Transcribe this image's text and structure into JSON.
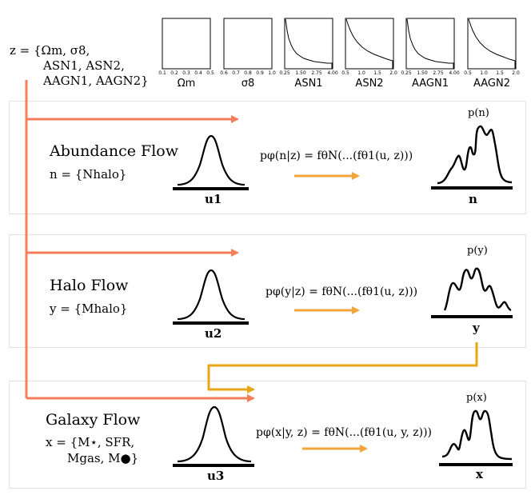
{
  "params": {
    "z_line1": "z = {Ωm, σ8,",
    "z_line2": "ASN1, ASN2,",
    "z_line3": "AAGN1, AAGN2}",
    "priors": [
      {
        "label": "Ωm",
        "ticks": [
          "0.1",
          "0.2",
          "0.3",
          "0.4",
          "0.5"
        ]
      },
      {
        "label": "σ8",
        "ticks": [
          "0.6",
          "0.7",
          "0.8",
          "0.9",
          "1.0"
        ]
      },
      {
        "label": "ASN1",
        "ticks": [
          "0.25",
          "1.50",
          "2.75",
          "4.00"
        ]
      },
      {
        "label": "ASN2",
        "ticks": [
          "0.5",
          "1.0",
          "1.5",
          "2.0"
        ]
      },
      {
        "label": "AAGN1",
        "ticks": [
          "0.25",
          "1.50",
          "2.75",
          "4.00"
        ]
      },
      {
        "label": "AAGN2",
        "ticks": [
          "0.5",
          "1.0",
          "1.5",
          "2.0"
        ]
      }
    ]
  },
  "flows": [
    {
      "title": "Abundance Flow",
      "definition": "n = {Nhalo}",
      "base_label": "u1",
      "equation": "pφ(n|z) = fθN(...(fθ1(u, z)))",
      "target_label": "n",
      "density_label": "p(n)"
    },
    {
      "title": "Halo Flow",
      "definition": "y = {Mhalo}",
      "base_label": "u2",
      "equation": "pφ(y|z) = fθN(...(fθ1(u, z)))",
      "target_label": "y",
      "density_label": "p(y)"
    },
    {
      "title": "Galaxy Flow",
      "definition_line1": "x = {M⋆, SFR,",
      "definition_line2": "Mgas, M●}",
      "base_label": "u3",
      "equation": "pφ(x|y, z) = fθN(...(fθ1(u, y, z)))",
      "target_label": "x",
      "density_label": "p(x)"
    }
  ],
  "colors": {
    "salmon": "#f47d5b",
    "orange": "#f2a43a",
    "gold": "#e8a515",
    "panel_border": "#e2e2e2"
  }
}
